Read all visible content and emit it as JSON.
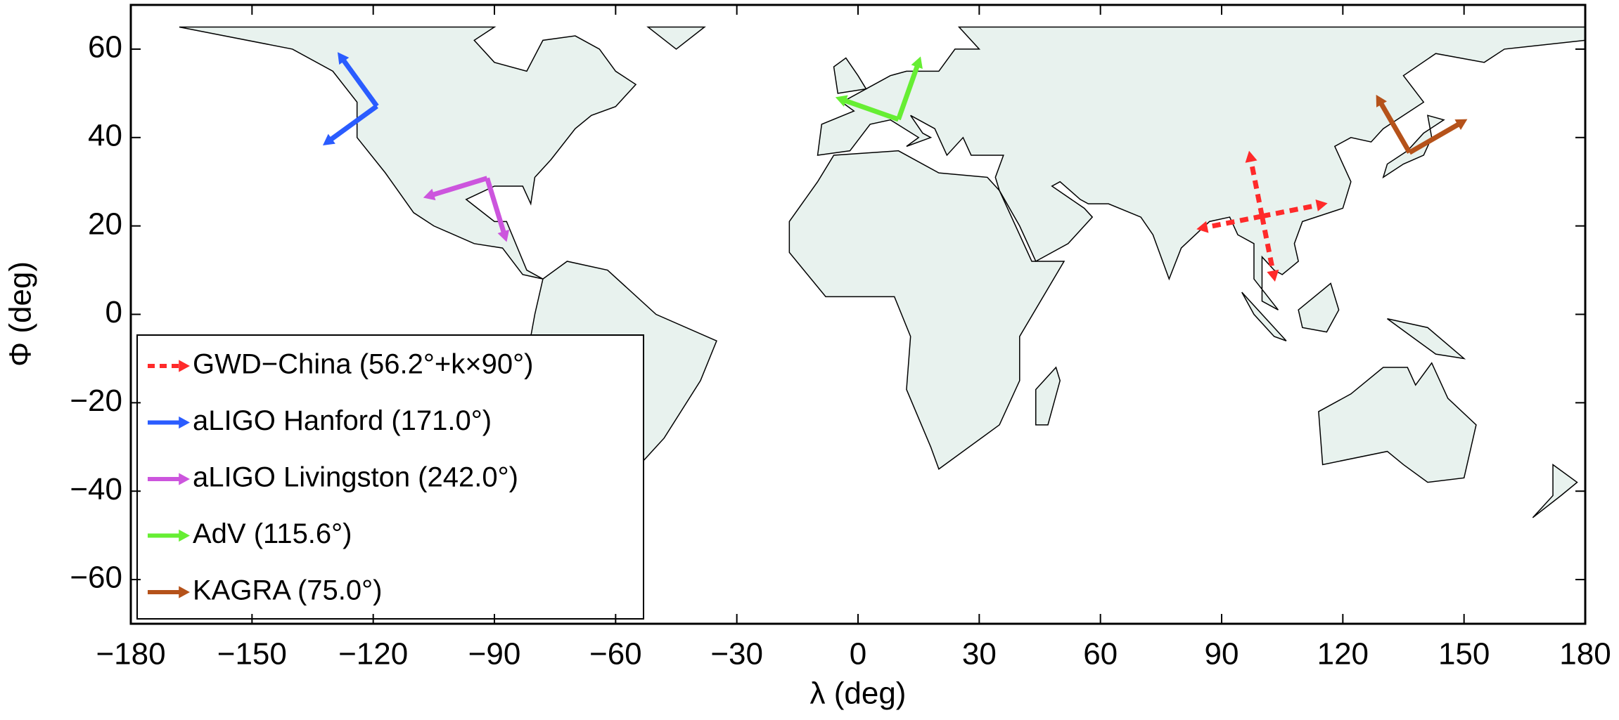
{
  "chart_data": {
    "type": "map",
    "xlabel": "λ (deg)",
    "ylabel": "Φ (deg)",
    "xlim": [
      -180,
      180
    ],
    "ylim": [
      -70,
      70
    ],
    "xticks": [
      {
        "value": -180,
        "label": "−180"
      },
      {
        "value": -150,
        "label": "−150"
      },
      {
        "value": -120,
        "label": "−120"
      },
      {
        "value": -90,
        "label": "−90"
      },
      {
        "value": -60,
        "label": "−60"
      },
      {
        "value": -30,
        "label": "−30"
      },
      0,
      30,
      60,
      90,
      120,
      150,
      180
    ],
    "yticks": [
      {
        "value": -60,
        "label": "−60"
      },
      {
        "value": -40,
        "label": "−40"
      },
      {
        "value": -20,
        "label": "−20"
      },
      0,
      20,
      40,
      60
    ],
    "legend": "lower left",
    "series": [
      {
        "name": "GWD−China (56.2°+k×90°)",
        "color": "#ff2a2a",
        "line_style": "dashed",
        "x": 100,
        "y": 22.2,
        "orientation": 56.2
      },
      {
        "name": "aLIGO Hanford (171.0°)",
        "color": "#2a5cff",
        "line_style": "solid",
        "x": -119.1,
        "y": 47.1,
        "orientation": 171.0
      },
      {
        "name": "aLIGO Livingston (242.0°)",
        "color": "#cc55dd",
        "line_style": "solid",
        "x": -91.8,
        "y": 30.8,
        "orientation": 242.0
      },
      {
        "name": "AdV (115.6°)",
        "color": "#66ee33",
        "line_style": "solid",
        "x": 10,
        "y": 44.1,
        "orientation": 115.6
      },
      {
        "name": "KAGRA (75.0°)",
        "color": "#b5521a",
        "line_style": "solid",
        "x": 136.5,
        "y": 36.6,
        "orientation": 75.0
      }
    ]
  }
}
